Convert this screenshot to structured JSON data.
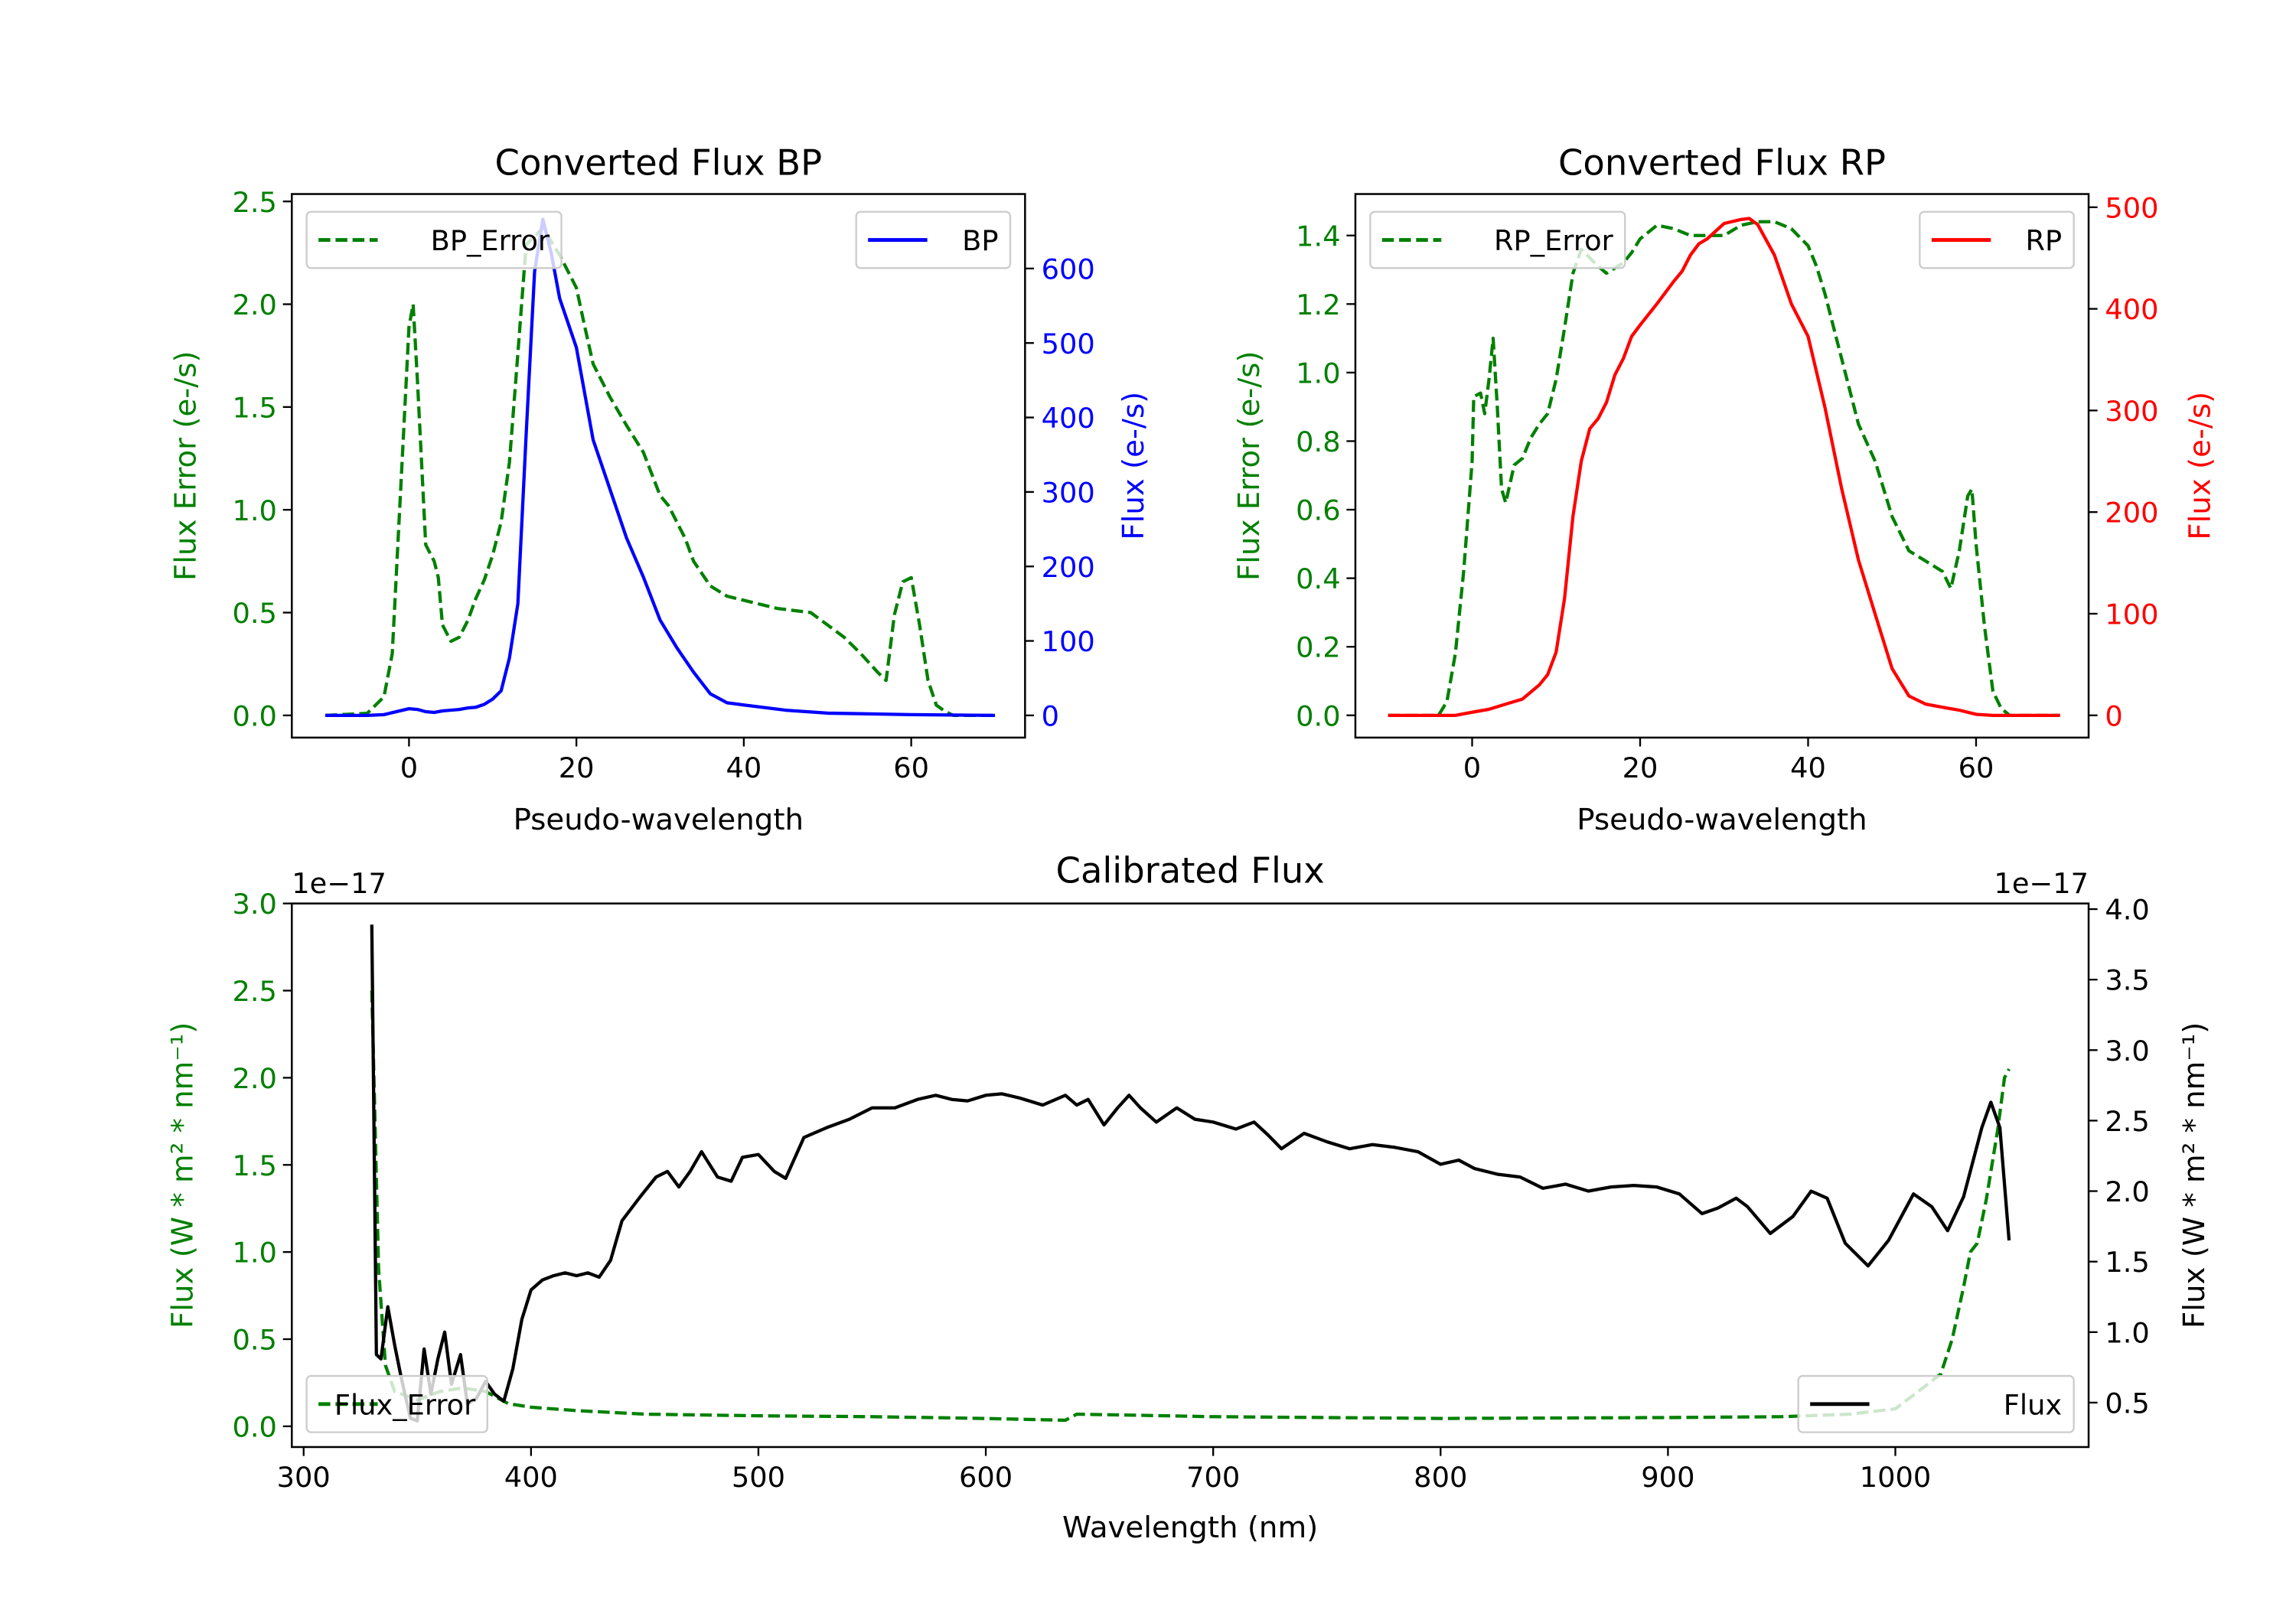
{
  "colors": {
    "green": "#008000",
    "blue": "#0000ff",
    "red": "#ff0000",
    "black": "#000000"
  },
  "chart_data": [
    {
      "id": "bp",
      "type": "line",
      "title": "Converted Flux BP",
      "xlabel": "Pseudo-wavelength",
      "ylabel_left": "Flux Error (e-/s)",
      "ylabel_right": "Flux (e-/s)",
      "xlim": [
        -14,
        73.6
      ],
      "ylim_left": [
        -0.108,
        2.536
      ],
      "ylim_right": [
        -29.8,
        700
      ],
      "xticks": [
        0,
        20,
        40,
        60
      ],
      "xtick_labels": [
        "0",
        "20",
        "40",
        "60"
      ],
      "yticks_left": [
        0,
        0.5,
        1.0,
        1.5,
        2.0,
        2.5
      ],
      "ytick_labels_left": [
        "0.0",
        "0.5",
        "1.0",
        "1.5",
        "2.0",
        "2.5"
      ],
      "yticks_right": [
        0,
        100,
        200,
        300,
        400,
        500,
        600
      ],
      "ytick_labels_right": [
        "0",
        "100",
        "200",
        "300",
        "400",
        "500",
        "600"
      ],
      "left_color": "#008000",
      "right_color": "#0000ff",
      "legend_left": "top-left",
      "legend_right": "top-right",
      "series": [
        {
          "name": "BP_Error",
          "axis": "left",
          "style": "dashed",
          "color": "#008000",
          "x": [
            -10,
            -5,
            -3,
            -2,
            -1,
            0,
            0.5,
            1,
            2,
            3,
            3.5,
            4,
            5,
            6,
            7,
            8,
            9,
            10,
            11,
            12,
            13,
            14,
            16,
            18,
            20,
            21,
            22,
            24,
            26,
            28,
            30,
            31,
            33,
            34,
            36,
            38,
            40,
            44,
            48,
            50,
            52,
            54,
            56,
            57,
            58,
            59,
            60,
            61,
            62,
            63,
            64,
            65,
            70
          ],
          "y": [
            0,
            0.01,
            0.09,
            0.3,
            1.1,
            1.89,
            2.0,
            1.63,
            0.83,
            0.75,
            0.67,
            0.44,
            0.36,
            0.38,
            0.46,
            0.57,
            0.66,
            0.78,
            0.94,
            1.23,
            1.76,
            2.29,
            2.37,
            2.24,
            2.08,
            1.89,
            1.71,
            1.55,
            1.41,
            1.28,
            1.07,
            1.02,
            0.86,
            0.75,
            0.63,
            0.58,
            0.56,
            0.52,
            0.5,
            0.44,
            0.38,
            0.3,
            0.21,
            0.17,
            0.49,
            0.65,
            0.67,
            0.44,
            0.17,
            0.05,
            0.02,
            0,
            0
          ]
        },
        {
          "name": "BP",
          "axis": "right",
          "style": "solid",
          "color": "#0000ff",
          "x": [
            -10,
            -5,
            -3,
            0,
            1,
            2,
            3,
            4,
            5,
            6,
            7,
            8,
            9,
            10,
            11,
            12,
            13,
            14,
            15,
            16,
            17,
            18,
            20,
            22,
            24,
            26,
            28,
            30,
            32,
            34,
            36,
            38,
            40,
            45,
            50,
            60,
            70
          ],
          "y": [
            0,
            0,
            1,
            9,
            8,
            5,
            4,
            6,
            7,
            8,
            10,
            11,
            15,
            22,
            33,
            77,
            150,
            377,
            596,
            666,
            620,
            560,
            494,
            370,
            304,
            238,
            186,
            128,
            91,
            58,
            29,
            17,
            14,
            7,
            3,
            1,
            0
          ]
        }
      ]
    },
    {
      "id": "rp",
      "type": "line",
      "title": "Converted Flux RP",
      "xlabel": "Pseudo-wavelength",
      "ylabel_left": "Flux Error (e-/s)",
      "ylabel_right": "Flux (e-/s)",
      "xlim": [
        -13.9,
        73.4
      ],
      "ylim_left": [
        -0.065,
        1.521
      ],
      "ylim_right": [
        -21.9,
        513
      ],
      "xticks": [
        0,
        20,
        40,
        60
      ],
      "xtick_labels": [
        "0",
        "20",
        "40",
        "60"
      ],
      "yticks_left": [
        0,
        0.2,
        0.4,
        0.6,
        0.8,
        1.0,
        1.2,
        1.4
      ],
      "ytick_labels_left": [
        "0.0",
        "0.2",
        "0.4",
        "0.6",
        "0.8",
        "1.0",
        "1.2",
        "1.4"
      ],
      "yticks_right": [
        0,
        100,
        200,
        300,
        400,
        500
      ],
      "ytick_labels_right": [
        "0",
        "100",
        "200",
        "300",
        "400",
        "500"
      ],
      "left_color": "#008000",
      "right_color": "#ff0000",
      "legend_left": "top-left",
      "legend_right": "top-right",
      "series": [
        {
          "name": "RP_Error",
          "axis": "left",
          "style": "dashed",
          "color": "#008000",
          "x": [
            -10,
            -4,
            -3,
            -2,
            -1,
            0,
            0.2,
            1,
            1.5,
            2,
            2.5,
            3,
            3.5,
            4,
            5,
            6,
            7,
            8,
            9,
            10,
            11,
            12,
            13,
            15,
            16,
            18,
            19,
            20,
            22,
            24,
            26,
            28,
            30,
            32,
            34,
            36,
            38,
            40,
            41,
            42,
            44,
            46,
            48,
            50,
            52,
            54,
            56,
            57,
            58,
            59,
            59.5,
            60,
            61,
            62,
            63,
            64,
            70
          ],
          "y": [
            0,
            0,
            0.04,
            0.18,
            0.42,
            0.74,
            0.93,
            0.94,
            0.88,
            0.98,
            1.1,
            0.9,
            0.66,
            0.62,
            0.73,
            0.75,
            0.81,
            0.85,
            0.88,
            0.98,
            1.13,
            1.29,
            1.36,
            1.31,
            1.29,
            1.32,
            1.35,
            1.39,
            1.43,
            1.42,
            1.4,
            1.4,
            1.4,
            1.43,
            1.44,
            1.44,
            1.42,
            1.37,
            1.31,
            1.23,
            1.04,
            0.85,
            0.74,
            0.58,
            0.48,
            0.45,
            0.42,
            0.37,
            0.48,
            0.64,
            0.66,
            0.5,
            0.26,
            0.07,
            0.02,
            0,
            0
          ]
        },
        {
          "name": "RP",
          "axis": "right",
          "style": "solid",
          "color": "#ff0000",
          "x": [
            -10,
            -2,
            0,
            2,
            4,
            6,
            8,
            9,
            10,
            11,
            12,
            13,
            14,
            15,
            16,
            17,
            18,
            19,
            20,
            22,
            24,
            25,
            26,
            27,
            28,
            30,
            32,
            33,
            34,
            36,
            38,
            40,
            42,
            44,
            46,
            48,
            50,
            52,
            54,
            56,
            58,
            60,
            62,
            70
          ],
          "y": [
            0,
            0,
            3,
            6,
            11,
            16,
            30,
            40,
            62,
            115,
            196,
            250,
            282,
            292,
            308,
            335,
            351,
            373,
            384,
            405,
            427,
            437,
            453,
            464,
            469,
            484,
            488,
            489,
            483,
            453,
            405,
            373,
            303,
            223,
            153,
            99,
            46,
            19,
            11,
            8,
            5,
            1,
            0,
            0
          ]
        }
      ]
    },
    {
      "id": "cal",
      "type": "line",
      "title": "Calibrated Flux",
      "xlabel": "Wavelength (nm)",
      "ylabel_left": "Flux (W * m² * nm⁻¹)",
      "ylabel_right": "Flux (W * m² * nm⁻¹)",
      "offset_left": "1e−17",
      "offset_right": "1e−17",
      "xlim": [
        294.8,
        1085
      ],
      "ylim_left": [
        -0.119,
        3.0
      ],
      "ylim_right": [
        0.185,
        4.04
      ],
      "xticks": [
        300,
        400,
        500,
        600,
        700,
        800,
        900,
        1000
      ],
      "xtick_labels": [
        "300",
        "400",
        "500",
        "600",
        "700",
        "800",
        "900",
        "1000"
      ],
      "yticks_left": [
        0,
        0.5,
        1.0,
        1.5,
        2.0,
        2.5,
        3.0
      ],
      "ytick_labels_left": [
        "0.0",
        "0.5",
        "1.0",
        "1.5",
        "2.0",
        "2.5",
        "3.0"
      ],
      "yticks_right": [
        0.5,
        1.0,
        1.5,
        2.0,
        2.5,
        3.0,
        3.5,
        4.0
      ],
      "ytick_labels_right": [
        "0.5",
        "1.0",
        "1.5",
        "2.0",
        "2.5",
        "3.0",
        "3.5",
        "4.0"
      ],
      "left_color": "#008000",
      "right_color": "#000000",
      "legend_left": "lower-left",
      "legend_right": "lower-right",
      "series": [
        {
          "name": "Flux_Error",
          "axis": "left",
          "style": "dashed",
          "color": "#008000",
          "x": [
            330,
            333,
            336,
            340,
            350,
            360,
            370,
            380,
            390,
            400,
            420,
            450,
            500,
            550,
            600,
            635,
            640,
            700,
            800,
            900,
            950,
            980,
            1000,
            1010,
            1020,
            1025,
            1030,
            1033,
            1036,
            1040,
            1045,
            1048,
            1050
          ],
          "y": [
            2.5,
            0.9,
            0.35,
            0.2,
            0.15,
            0.2,
            0.22,
            0.2,
            0.13,
            0.11,
            0.09,
            0.07,
            0.06,
            0.055,
            0.045,
            0.035,
            0.07,
            0.055,
            0.045,
            0.05,
            0.055,
            0.07,
            0.1,
            0.2,
            0.3,
            0.5,
            0.8,
            1.0,
            1.05,
            1.3,
            1.7,
            2.0,
            2.05
          ]
        },
        {
          "name": "Flux",
          "axis": "right",
          "style": "solid",
          "color": "#000000",
          "x": [
            330,
            332,
            334,
            337,
            340,
            343,
            347,
            350,
            353,
            356,
            359,
            362,
            365,
            369,
            372,
            376,
            380,
            384,
            388,
            392,
            396,
            400,
            405,
            410,
            415,
            420,
            425,
            430,
            435,
            440,
            448,
            455,
            460,
            465,
            470,
            475,
            482,
            488,
            493,
            500,
            507,
            512,
            520,
            530,
            540,
            550,
            560,
            570,
            578,
            585,
            592,
            600,
            607,
            615,
            625,
            635,
            640,
            645,
            652,
            658,
            663,
            668,
            675,
            684,
            692,
            700,
            710,
            718,
            724,
            730,
            740,
            750,
            760,
            770,
            780,
            790,
            800,
            808,
            815,
            825,
            835,
            845,
            855,
            865,
            875,
            885,
            895,
            905,
            915,
            922,
            930,
            935,
            945,
            955,
            963,
            970,
            978,
            988,
            997,
            1008,
            1016,
            1023,
            1030,
            1038,
            1042,
            1046,
            1050
          ],
          "y": [
            3.89,
            0.84,
            0.81,
            1.18,
            0.91,
            0.67,
            0.39,
            0.37,
            0.88,
            0.56,
            0.81,
            1.0,
            0.63,
            0.84,
            0.49,
            0.53,
            0.65,
            0.56,
            0.51,
            0.74,
            1.09,
            1.3,
            1.37,
            1.4,
            1.42,
            1.4,
            1.42,
            1.39,
            1.51,
            1.79,
            1.96,
            2.1,
            2.14,
            2.03,
            2.14,
            2.28,
            2.1,
            2.07,
            2.24,
            2.26,
            2.14,
            2.09,
            2.38,
            2.45,
            2.51,
            2.59,
            2.59,
            2.65,
            2.68,
            2.65,
            2.64,
            2.68,
            2.69,
            2.66,
            2.61,
            2.68,
            2.61,
            2.65,
            2.47,
            2.59,
            2.68,
            2.59,
            2.49,
            2.59,
            2.51,
            2.49,
            2.44,
            2.49,
            2.4,
            2.3,
            2.41,
            2.35,
            2.3,
            2.33,
            2.31,
            2.28,
            2.19,
            2.22,
            2.16,
            2.12,
            2.1,
            2.02,
            2.05,
            2.0,
            2.03,
            2.04,
            2.03,
            1.98,
            1.84,
            1.88,
            1.95,
            1.89,
            1.7,
            1.82,
            2.0,
            1.95,
            1.63,
            1.47,
            1.65,
            1.98,
            1.89,
            1.72,
            1.96,
            2.45,
            2.63,
            2.45,
            1.65
          ]
        }
      ]
    }
  ]
}
